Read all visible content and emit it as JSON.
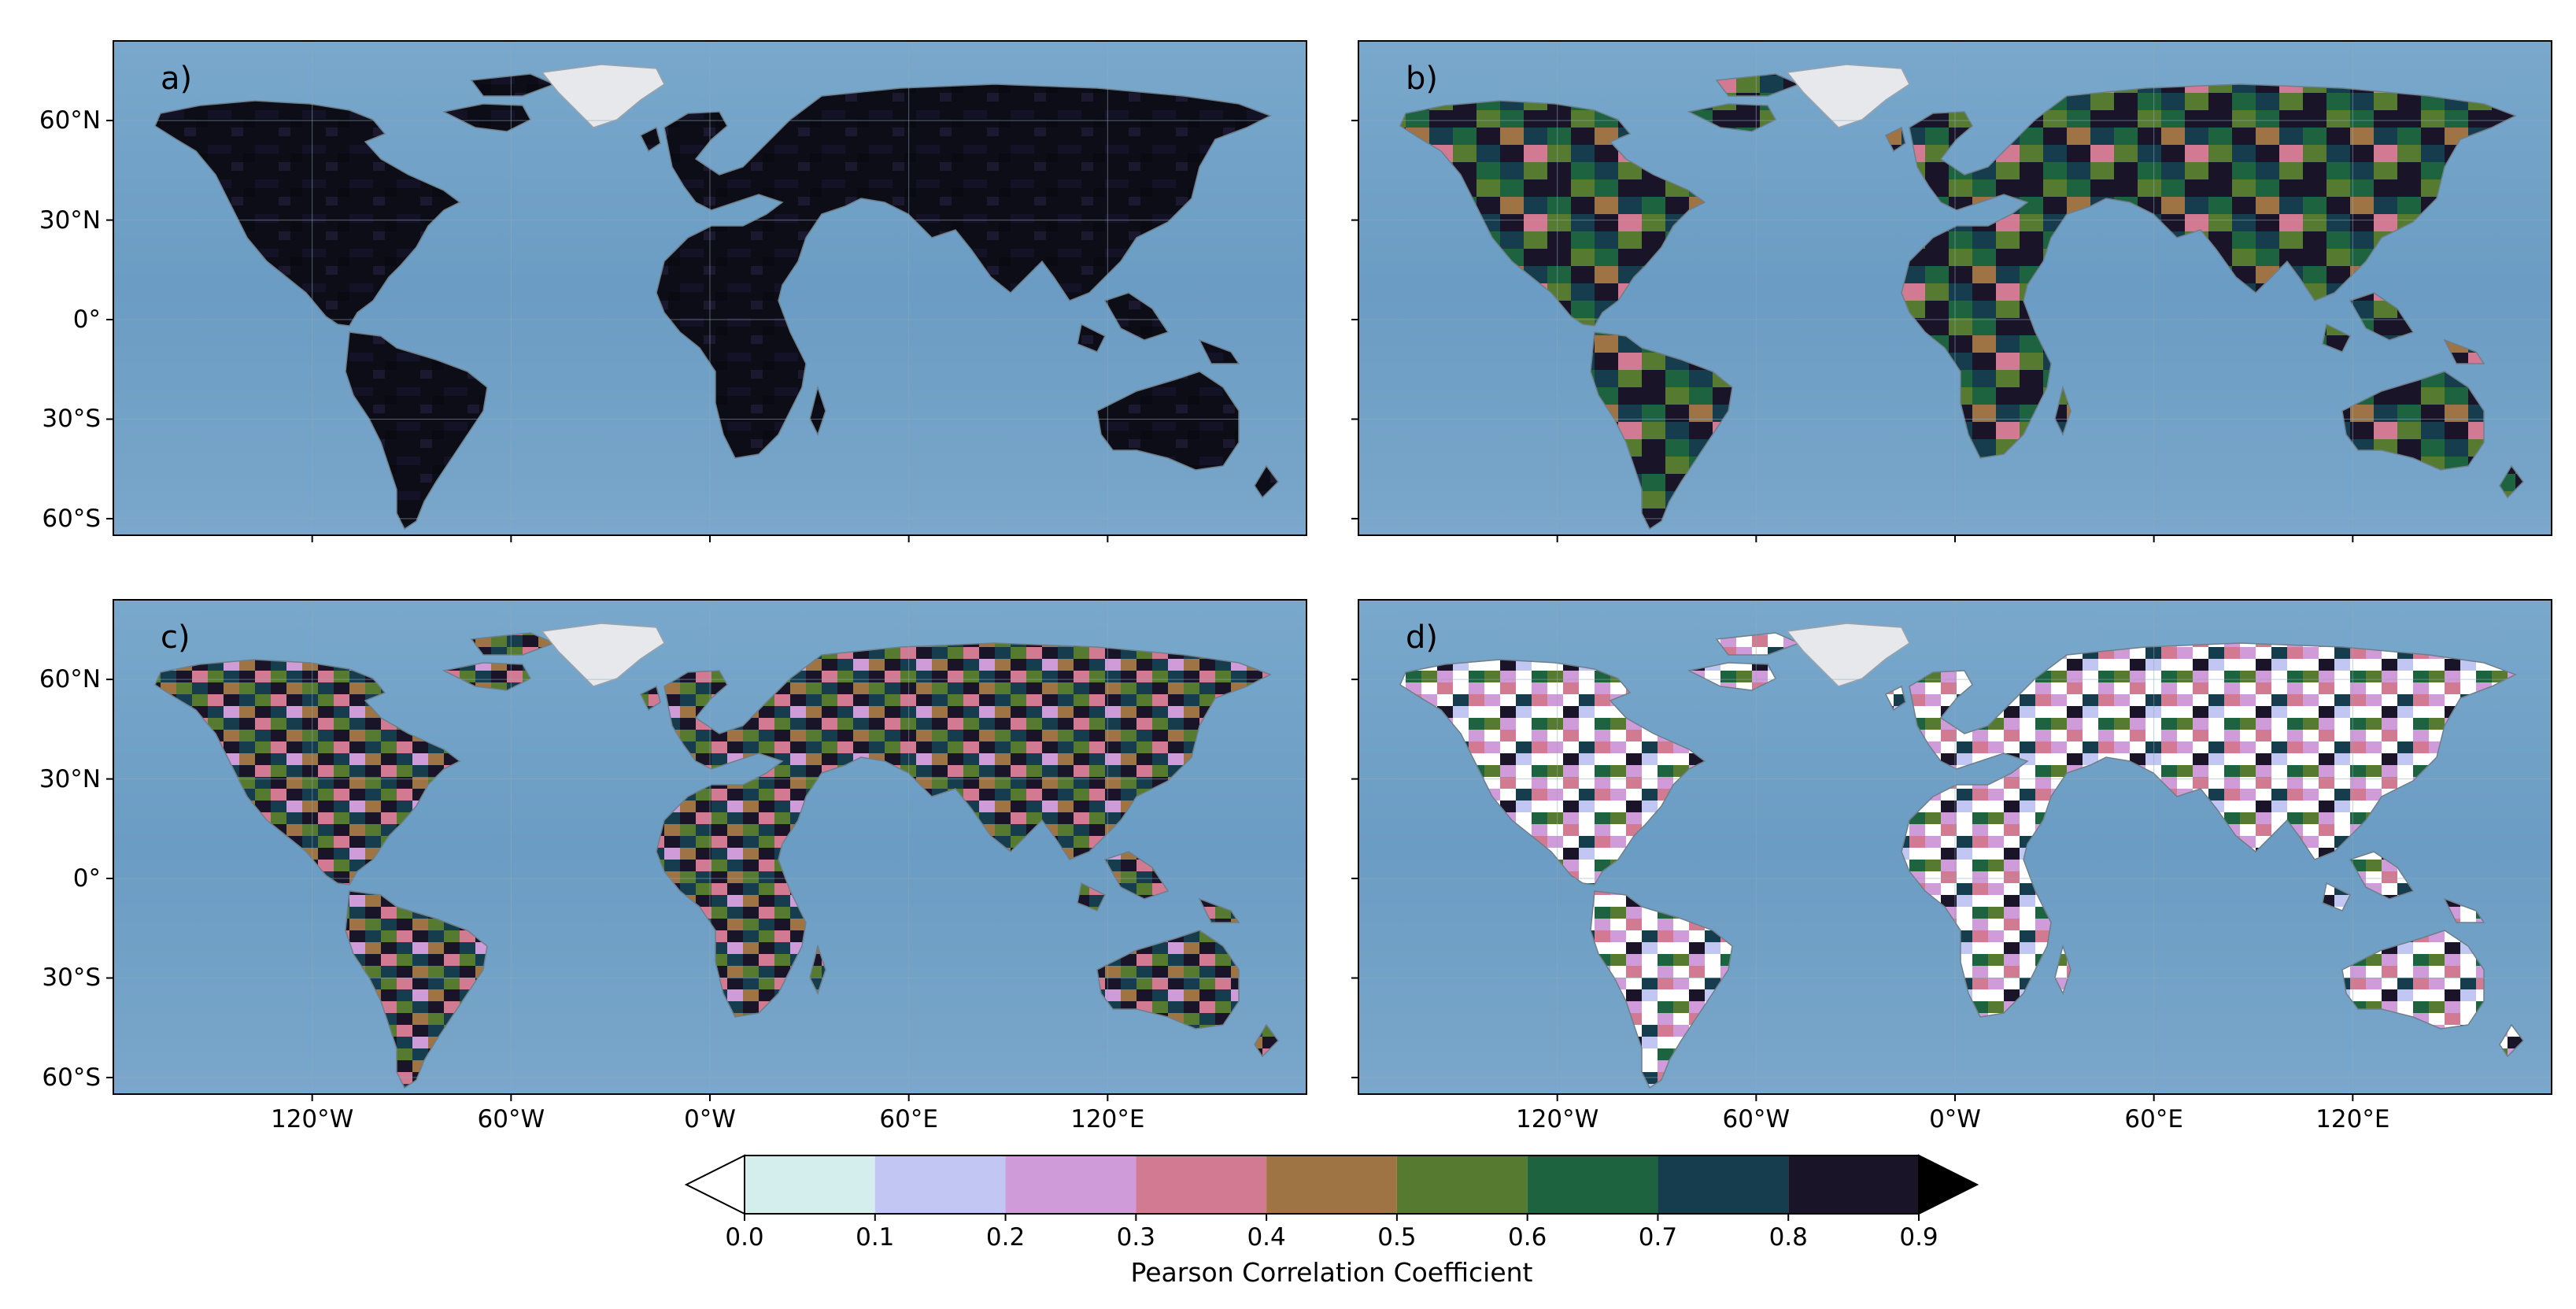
{
  "panels": [
    {
      "id": "a",
      "label": "a)",
      "style": "all-high"
    },
    {
      "id": "b",
      "label": "b)",
      "style": "mixed-high"
    },
    {
      "id": "c",
      "label": "c)",
      "style": "mixed"
    },
    {
      "id": "d",
      "label": "d)",
      "style": "low"
    }
  ],
  "lat_ticks": [
    "60°N",
    "30°N",
    "0°",
    "30°S",
    "60°S"
  ],
  "lon_ticks": [
    "120°W",
    "60°W",
    "0°W",
    "60°E",
    "120°E"
  ],
  "colorbar": {
    "title": "Pearson Correlation Coefficient",
    "ticks": [
      "0.0",
      "0.1",
      "0.2",
      "0.3",
      "0.4",
      "0.5",
      "0.6",
      "0.7",
      "0.8",
      "0.9"
    ],
    "colors": [
      "#d4eeee",
      "#c2c6f2",
      "#d09bd9",
      "#d27a92",
      "#9e7444",
      "#567a30",
      "#1e6340",
      "#163d4d",
      "#1a1428"
    ],
    "under_color": "#ffffff",
    "over_color": "#000000",
    "extend": "both"
  },
  "colors": {
    "ocean": "#6e9fc5",
    "ice": "#e6e8ec",
    "grid": "#8fa9bd"
  }
}
